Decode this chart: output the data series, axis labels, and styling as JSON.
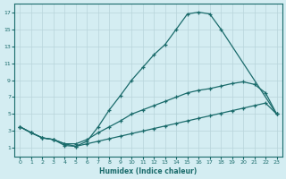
{
  "xlabel": "Humidex (Indice chaleur)",
  "background_color": "#d4edf2",
  "grid_color": "#b8d4da",
  "line_color": "#1a6b6b",
  "xlim": [
    -0.5,
    23.5
  ],
  "ylim": [
    0,
    18
  ],
  "xticks": [
    0,
    1,
    2,
    3,
    4,
    5,
    6,
    7,
    8,
    9,
    10,
    11,
    12,
    13,
    14,
    15,
    16,
    17,
    18,
    19,
    20,
    21,
    22,
    23
  ],
  "yticks": [
    1,
    3,
    5,
    7,
    9,
    11,
    13,
    15,
    17
  ],
  "line1_x": [
    0,
    1,
    2,
    3,
    4,
    5,
    6,
    7,
    8,
    9,
    10,
    11,
    12,
    13,
    14,
    15,
    16,
    17,
    18,
    23
  ],
  "line1_y": [
    3.5,
    2.8,
    2.2,
    2.0,
    1.5,
    1.2,
    1.8,
    3.5,
    5.5,
    7.2,
    9.0,
    10.5,
    12.0,
    13.2,
    15.0,
    16.8,
    17.0,
    16.8,
    15.0,
    5.0
  ],
  "line2_x": [
    0,
    1,
    2,
    3,
    4,
    5,
    6,
    7,
    8,
    9,
    10,
    11,
    12,
    13,
    14,
    15,
    16,
    17,
    18,
    19,
    20,
    21,
    22,
    23
  ],
  "line2_y": [
    3.5,
    2.8,
    2.2,
    2.0,
    1.5,
    1.5,
    2.0,
    2.8,
    3.5,
    4.2,
    5.0,
    5.5,
    6.0,
    6.5,
    7.0,
    7.5,
    7.8,
    8.0,
    8.3,
    8.6,
    8.8,
    8.5,
    7.5,
    5.0
  ],
  "line3_x": [
    0,
    1,
    2,
    3,
    4,
    5,
    6,
    7,
    8,
    9,
    10,
    11,
    12,
    13,
    14,
    15,
    16,
    17,
    18,
    19,
    20,
    21,
    22,
    23
  ],
  "line3_y": [
    3.5,
    2.8,
    2.2,
    2.0,
    1.3,
    1.2,
    1.5,
    1.8,
    2.1,
    2.4,
    2.7,
    3.0,
    3.3,
    3.6,
    3.9,
    4.2,
    4.5,
    4.8,
    5.1,
    5.4,
    5.7,
    6.0,
    6.3,
    5.0
  ]
}
